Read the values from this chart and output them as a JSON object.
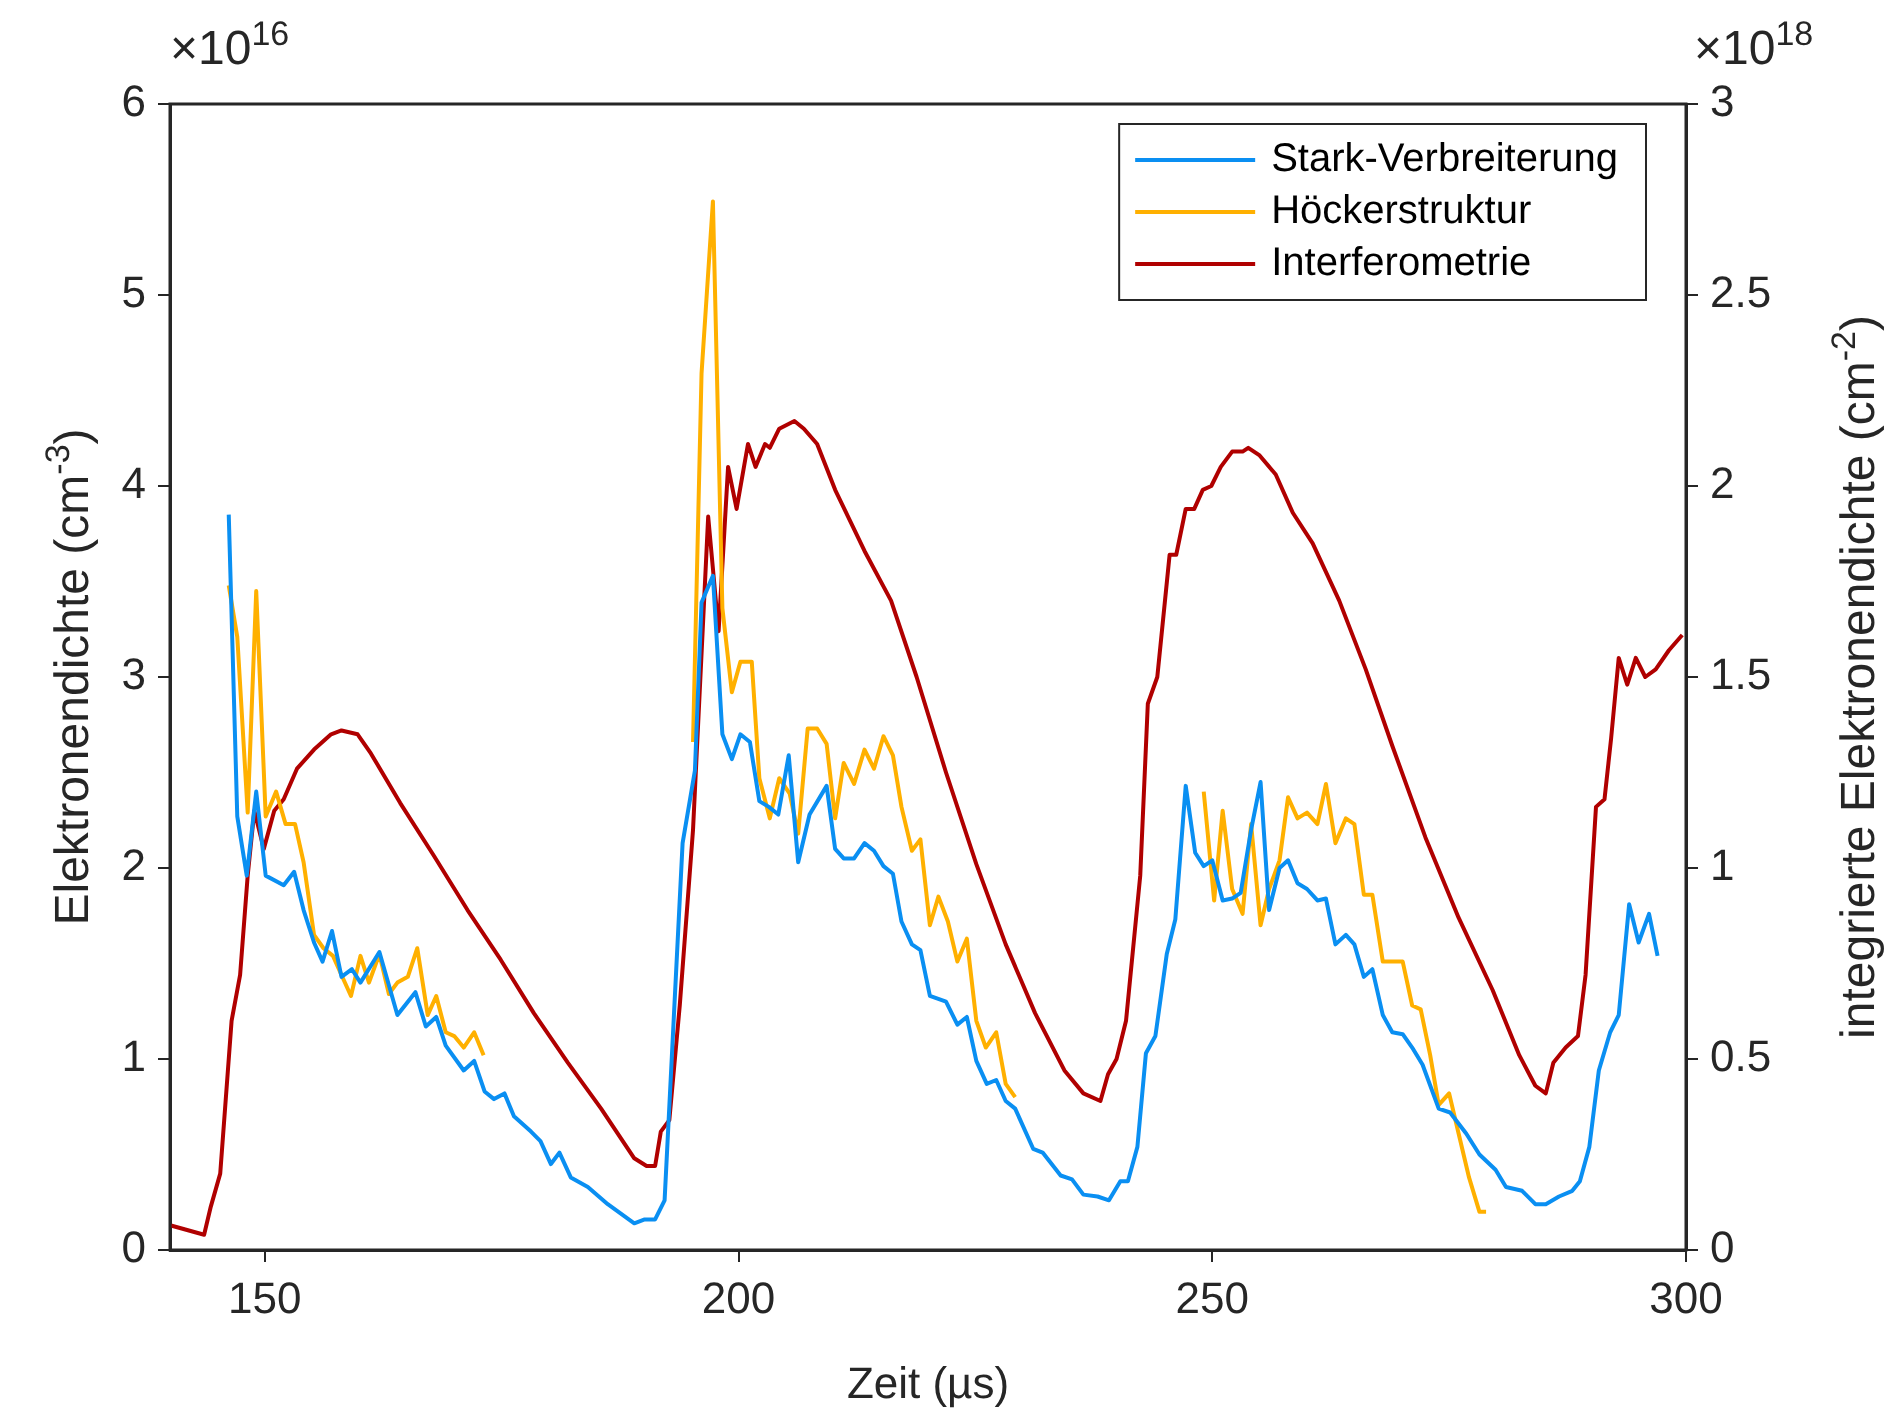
{
  "chart_data": {
    "type": "line",
    "xlabel": "Zeit (µs)",
    "ylabel": "Elektronendichte (cm$^{-3}$)",
    "y2label": "integrierte Elektronendichte (cm$^{-2}$)",
    "annotations": [
      "×10$^{16}$",
      "×10$^{18}$"
    ],
    "xlim": [
      140,
      300
    ],
    "xticks": [
      150,
      200,
      250,
      300
    ],
    "ylim": [
      0,
      6
    ],
    "yticks": [
      0,
      1,
      2,
      3,
      4,
      5,
      6
    ],
    "y2lim": [
      0,
      3
    ],
    "y2ticks": [
      0,
      0.5,
      1,
      1.5,
      2,
      2.5,
      3
    ],
    "legend": "top right",
    "grid": false,
    "marker": "none",
    "line_style": "solid",
    "series": [
      {
        "name": "Stark-Verbreiterung",
        "color": "#0a8ff2",
        "axis": "y",
        "x": [
          146.2,
          147.1,
          148.1,
          149.1,
          150.1,
          152.0,
          153.1,
          154.1,
          155.2,
          156.1,
          157.1,
          158.1,
          159.2,
          160.1,
          162.1,
          164.0,
          165.9,
          167.0,
          168.1,
          169.1,
          171.0,
          172.1,
          173.2,
          174.2,
          175.3,
          176.3,
          178.1,
          179.1,
          180.2,
          181.1,
          182.3,
          184.1,
          186.2,
          189.0,
          190.1,
          191.2,
          192.2,
          194.1,
          195.4,
          196.1,
          197.3,
          198.3,
          199.3,
          200.2,
          201.2,
          202.2,
          203.2,
          204.2,
          205.3,
          206.3,
          207.5,
          209.3,
          210.2,
          211.1,
          212.2,
          213.3,
          214.3,
          215.3,
          216.3,
          217.2,
          218.3,
          219.2,
          220.2,
          221.9,
          223.1,
          224.1,
          225.1,
          226.2,
          227.2,
          228.2,
          229.2,
          231.1,
          232.1,
          234.0,
          235.2,
          236.4,
          237.9,
          239.1,
          240.3,
          241.1,
          242.1,
          243.0,
          244.0,
          245.2,
          246.1,
          247.2,
          248.2,
          249.1,
          250.0,
          251.1,
          252.1,
          253.0,
          254.1,
          255.1,
          256.0,
          257.1,
          258.0,
          259.0,
          260.0,
          261.1,
          262.0,
          263.0,
          264.1,
          265.0,
          266.0,
          266.9,
          268.0,
          269.0,
          270.1,
          271.1,
          272.2,
          273.9,
          275.1,
          276.8,
          278.2,
          279.9,
          281.0,
          282.7,
          284.1,
          285.2,
          286.6,
          288.0,
          288.8,
          289.8,
          290.8,
          292.0,
          292.9,
          294.0,
          295.0,
          296.1,
          297.0
        ],
        "values": [
          3.85,
          2.27,
          1.96,
          2.4,
          1.96,
          1.91,
          1.98,
          1.78,
          1.61,
          1.51,
          1.67,
          1.43,
          1.47,
          1.4,
          1.56,
          1.23,
          1.35,
          1.17,
          1.22,
          1.07,
          0.94,
          0.99,
          0.83,
          0.79,
          0.82,
          0.7,
          0.62,
          0.57,
          0.45,
          0.51,
          0.38,
          0.33,
          0.24,
          0.14,
          0.16,
          0.16,
          0.26,
          2.13,
          2.51,
          3.39,
          3.53,
          2.7,
          2.57,
          2.7,
          2.66,
          2.35,
          2.32,
          2.28,
          2.59,
          2.03,
          2.28,
          2.43,
          2.1,
          2.05,
          2.05,
          2.13,
          2.09,
          2.01,
          1.97,
          1.72,
          1.6,
          1.57,
          1.33,
          1.3,
          1.18,
          1.22,
          0.99,
          0.87,
          0.89,
          0.78,
          0.74,
          0.53,
          0.51,
          0.39,
          0.37,
          0.29,
          0.28,
          0.26,
          0.36,
          0.36,
          0.54,
          1.03,
          1.12,
          1.55,
          1.73,
          2.43,
          2.08,
          2.01,
          2.04,
          1.83,
          1.84,
          1.87,
          2.2,
          2.45,
          1.78,
          2.0,
          2.04,
          1.92,
          1.89,
          1.83,
          1.84,
          1.6,
          1.65,
          1.6,
          1.43,
          1.47,
          1.23,
          1.14,
          1.13,
          1.06,
          0.97,
          0.74,
          0.72,
          0.61,
          0.5,
          0.42,
          0.33,
          0.31,
          0.24,
          0.24,
          0.28,
          0.31,
          0.36,
          0.54,
          0.94,
          1.14,
          1.23,
          1.81,
          1.61,
          1.76,
          1.54
        ]
      },
      {
        "name": "Höckerstruktur",
        "color": "#ffb000",
        "axis": "y",
        "x": [
          146.2,
          147.1,
          148.2,
          149.1,
          150.1,
          151.2,
          152.2,
          153.2,
          154.1,
          155.2,
          156.2,
          157.2,
          158.1,
          159.1,
          160.1,
          161.0,
          162.1,
          163.1,
          164.0,
          165.1,
          166.1,
          167.2,
          168.1,
          169.1,
          170.0,
          171.0,
          172.1,
          173.1,
          null,
          195.2,
          196.1,
          197.3,
          198.3,
          199.3,
          200.2,
          201.4,
          202.2,
          203.3,
          204.3,
          205.4,
          206.3,
          207.3,
          208.3,
          209.3,
          210.2,
          211.1,
          212.2,
          213.3,
          214.3,
          215.3,
          216.3,
          217.2,
          218.3,
          219.2,
          220.2,
          221.1,
          222.1,
          223.1,
          224.1,
          225.1,
          226.1,
          227.2,
          228.2,
          229.2,
          null,
          249.1,
          250.2,
          251.1,
          252.1,
          253.2,
          254.1,
          255.1,
          256.0,
          257.1,
          258.0,
          259.0,
          260.0,
          261.1,
          262.0,
          263.0,
          264.1,
          265.0,
          266.0,
          266.9,
          268.0,
          270.1,
          271.1,
          272.0,
          273.0,
          273.9,
          275.0,
          276.0,
          277.1,
          278.2,
          278.9
        ],
        "values": [
          3.48,
          3.21,
          2.29,
          3.45,
          2.27,
          2.4,
          2.23,
          2.23,
          2.03,
          1.65,
          1.58,
          1.54,
          1.44,
          1.33,
          1.54,
          1.4,
          1.55,
          1.34,
          1.4,
          1.43,
          1.58,
          1.23,
          1.33,
          1.14,
          1.12,
          1.06,
          1.14,
          1.02,
          null,
          2.66,
          4.59,
          5.49,
          3.36,
          2.92,
          3.08,
          3.08,
          2.47,
          2.26,
          2.47,
          2.39,
          2.18,
          2.73,
          2.73,
          2.65,
          2.26,
          2.55,
          2.44,
          2.62,
          2.52,
          2.69,
          2.59,
          2.32,
          2.09,
          2.15,
          1.7,
          1.85,
          1.72,
          1.51,
          1.63,
          1.2,
          1.06,
          1.14,
          0.87,
          0.8,
          null,
          2.4,
          1.83,
          2.3,
          1.89,
          1.76,
          2.23,
          1.7,
          1.89,
          2.04,
          2.37,
          2.26,
          2.29,
          2.23,
          2.44,
          2.13,
          2.26,
          2.23,
          1.86,
          1.86,
          1.51,
          1.51,
          1.28,
          1.26,
          1.02,
          0.76,
          0.82,
          0.61,
          0.38,
          0.2,
          0.2
        ]
      },
      {
        "name": "Interferometrie",
        "color": "#b00000",
        "axis": "y2",
        "x": [
          140.1,
          143.6,
          144.3,
          145.3,
          146.5,
          147.4,
          148.2,
          148.9,
          149.9,
          151.0,
          152.0,
          153.4,
          155.2,
          157.0,
          158.1,
          159.8,
          161.2,
          164.3,
          167.9,
          171.4,
          174.9,
          178.4,
          182.0,
          185.5,
          189.0,
          190.3,
          191.2,
          191.8,
          192.7,
          193.8,
          195.2,
          196.8,
          197.9,
          198.9,
          199.8,
          201.0,
          201.8,
          202.8,
          203.3,
          204.3,
          205.9,
          206.9,
          208.3,
          210.2,
          213.3,
          216.1,
          218.8,
          221.9,
          225.1,
          228.2,
          231.3,
          234.4,
          236.4,
          238.2,
          239.0,
          239.9,
          240.9,
          242.4,
          243.2,
          244.2,
          245.5,
          246.2,
          247.2,
          248.1,
          249.0,
          249.9,
          250.9,
          252.1,
          253.2,
          253.8,
          255.0,
          256.7,
          258.5,
          260.6,
          263.4,
          266.2,
          269.0,
          272.5,
          276.0,
          279.6,
          282.4,
          284.1,
          285.2,
          286.0,
          287.3,
          288.6,
          289.4,
          290.5,
          291.4,
          292.1,
          292.9,
          293.8,
          294.7,
          295.7,
          296.8,
          298.2,
          299.6
        ],
        "values": [
          0.064,
          0.04,
          0.113,
          0.2,
          0.6,
          0.72,
          0.98,
          1.15,
          1.05,
          1.15,
          1.18,
          1.26,
          1.31,
          1.35,
          1.36,
          1.35,
          1.3,
          1.17,
          1.03,
          0.89,
          0.76,
          0.62,
          0.49,
          0.37,
          0.24,
          0.22,
          0.22,
          0.31,
          0.34,
          0.64,
          1.1,
          1.92,
          1.62,
          2.05,
          1.94,
          2.11,
          2.05,
          2.11,
          2.1,
          2.15,
          2.17,
          2.15,
          2.11,
          1.99,
          1.83,
          1.7,
          1.5,
          1.25,
          1.01,
          0.8,
          0.62,
          0.47,
          0.41,
          0.39,
          0.46,
          0.5,
          0.6,
          0.98,
          1.43,
          1.5,
          1.82,
          1.82,
          1.94,
          1.94,
          1.99,
          2.0,
          2.05,
          2.09,
          2.09,
          2.1,
          2.08,
          2.03,
          1.93,
          1.85,
          1.7,
          1.52,
          1.32,
          1.08,
          0.87,
          0.68,
          0.51,
          0.43,
          0.41,
          0.49,
          0.53,
          0.56,
          0.72,
          1.16,
          1.18,
          1.34,
          1.55,
          1.48,
          1.55,
          1.5,
          1.52,
          1.57,
          1.61
        ]
      }
    ]
  }
}
